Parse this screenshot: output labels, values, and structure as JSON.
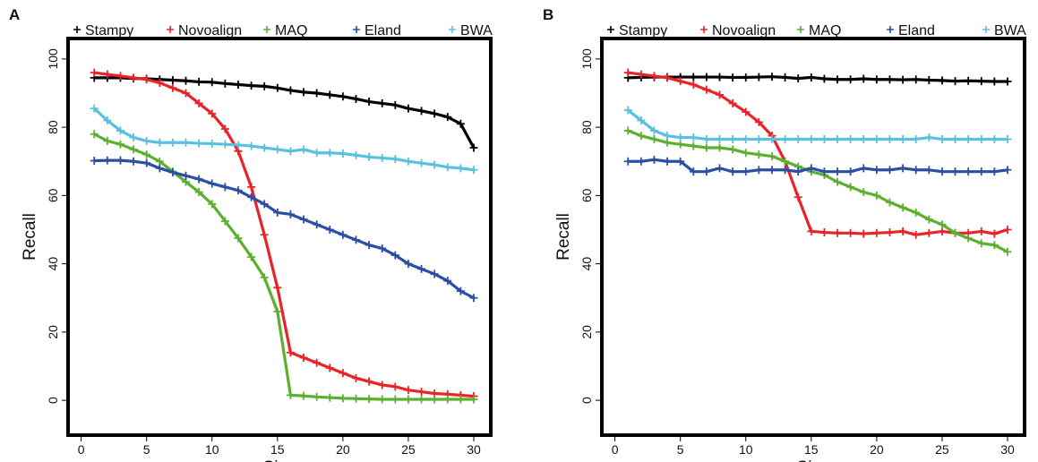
{
  "chart_data": [
    {
      "type": "line",
      "panel_label": "A",
      "x_label": "Size",
      "y_label": "Recall",
      "x": [
        1,
        2,
        3,
        4,
        5,
        6,
        7,
        8,
        9,
        10,
        11,
        12,
        13,
        14,
        15,
        16,
        17,
        18,
        19,
        20,
        21,
        22,
        23,
        24,
        25,
        26,
        27,
        28,
        29,
        30
      ],
      "xlim": [
        -1,
        31.3
      ],
      "ylim": [
        -10.2,
        106
      ],
      "xticks": [
        0,
        5,
        10,
        15,
        20,
        25,
        30
      ],
      "yticks": [
        0,
        20,
        40,
        60,
        80,
        100
      ],
      "series": [
        {
          "name": "Stampy",
          "color": "#000000",
          "values": [
            94.5,
            94.5,
            94.5,
            94.3,
            94.2,
            94,
            93.8,
            93.6,
            93.3,
            93.2,
            92.8,
            92.5,
            92.2,
            92,
            91.5,
            90.8,
            90.3,
            90,
            89.5,
            89,
            88.3,
            87.5,
            87,
            86.5,
            85.5,
            84.8,
            84,
            83,
            81,
            74
          ]
        },
        {
          "name": "Novoalign",
          "color": "#e8242a",
          "values": [
            96,
            95.5,
            95,
            94.5,
            94,
            93,
            91.5,
            90,
            87,
            84,
            79.5,
            73,
            62.5,
            48.5,
            33,
            14,
            12.5,
            11,
            9.5,
            8,
            6.5,
            5.5,
            4.5,
            4,
            3,
            2.5,
            2,
            1.8,
            1.5,
            1.2
          ]
        },
        {
          "name": "MAQ",
          "color": "#5cb030",
          "values": [
            78,
            76,
            75,
            73.5,
            72,
            70,
            67,
            64,
            61,
            57.5,
            52.5,
            47.5,
            42,
            36,
            26,
            1.5,
            1.3,
            1,
            0.8,
            0.6,
            0.5,
            0.4,
            0.3,
            0.3,
            0.3,
            0.3,
            0.3,
            0.3,
            0.3,
            0.3
          ]
        },
        {
          "name": "Eland",
          "color": "#2a4fa3",
          "values": [
            70.2,
            70.3,
            70.3,
            70,
            69.5,
            68,
            66.8,
            65.8,
            64.8,
            63.5,
            62.5,
            61.5,
            59.5,
            57.5,
            55,
            54.5,
            53,
            51.5,
            50,
            48.5,
            47,
            45.5,
            44.5,
            42.5,
            40,
            38.5,
            37,
            35,
            32,
            30
          ]
        },
        {
          "name": "BWA",
          "color": "#5bc0de",
          "values": [
            85.5,
            82,
            79,
            77,
            76,
            75.5,
            75.5,
            75.5,
            75.3,
            75.2,
            75,
            74.8,
            74.5,
            74,
            73.5,
            73,
            73.5,
            72.5,
            72.5,
            72.3,
            71.8,
            71.3,
            71,
            70.7,
            70,
            69.5,
            69,
            68.3,
            68,
            67.5
          ]
        }
      ]
    },
    {
      "type": "line",
      "panel_label": "B",
      "x_label": "Size",
      "y_label": "Recall",
      "x": [
        1,
        2,
        3,
        4,
        5,
        6,
        7,
        8,
        9,
        10,
        11,
        12,
        13,
        14,
        15,
        16,
        17,
        18,
        19,
        20,
        21,
        22,
        23,
        24,
        25,
        26,
        27,
        28,
        29,
        30
      ],
      "xlim": [
        -1,
        31.3
      ],
      "ylim": [
        -10.2,
        106
      ],
      "xticks": [
        0,
        5,
        10,
        15,
        20,
        25,
        30
      ],
      "yticks": [
        0,
        20,
        40,
        60,
        80,
        100
      ],
      "series": [
        {
          "name": "Stampy",
          "color": "#000000",
          "values": [
            94.5,
            94.6,
            94.7,
            94.7,
            94.7,
            94.7,
            94.7,
            94.7,
            94.6,
            94.6,
            94.7,
            94.8,
            94.6,
            94.3,
            94.6,
            94.2,
            94,
            94,
            94.2,
            94,
            94,
            93.9,
            94,
            93.8,
            93.7,
            93.5,
            93.6,
            93.5,
            93.4,
            93.4
          ]
        },
        {
          "name": "Novoalign",
          "color": "#e8242a",
          "values": [
            96,
            95.5,
            95,
            94.5,
            93.5,
            92.5,
            91,
            89.5,
            87,
            84.5,
            81.5,
            77.5,
            70,
            59.5,
            49.5,
            49.2,
            49,
            49,
            48.8,
            49,
            49.2,
            49.5,
            48.5,
            49,
            49.5,
            49,
            49,
            49.5,
            48.8,
            50
          ]
        },
        {
          "name": "MAQ",
          "color": "#5cb030",
          "values": [
            79,
            77.5,
            76.5,
            75.5,
            75,
            74.5,
            74,
            74,
            73.5,
            72.5,
            72,
            71.5,
            70,
            68.5,
            67,
            66,
            64,
            62.5,
            61,
            60,
            58,
            56.5,
            55,
            53,
            51.5,
            49,
            47.5,
            46,
            45.5,
            43.5
          ]
        },
        {
          "name": "Eland",
          "color": "#2a4fa3",
          "values": [
            70,
            70,
            70.5,
            70,
            70,
            67,
            67,
            68,
            67,
            67,
            67.5,
            67.5,
            67.5,
            67,
            68,
            67,
            67,
            67,
            68,
            67.5,
            67.5,
            68,
            67.5,
            67.5,
            67,
            67,
            67,
            67,
            67,
            67.5
          ]
        },
        {
          "name": "BWA",
          "color": "#5bc0de",
          "values": [
            85,
            82,
            79,
            77.5,
            77,
            77,
            76.5,
            76.5,
            76.5,
            76.5,
            76.5,
            76.5,
            76.5,
            76.5,
            76.5,
            76.5,
            76.5,
            76.5,
            76.5,
            76.5,
            76.5,
            76.5,
            76.5,
            77,
            76.5,
            76.5,
            76.5,
            76.5,
            76.5,
            76.5
          ]
        }
      ]
    }
  ]
}
